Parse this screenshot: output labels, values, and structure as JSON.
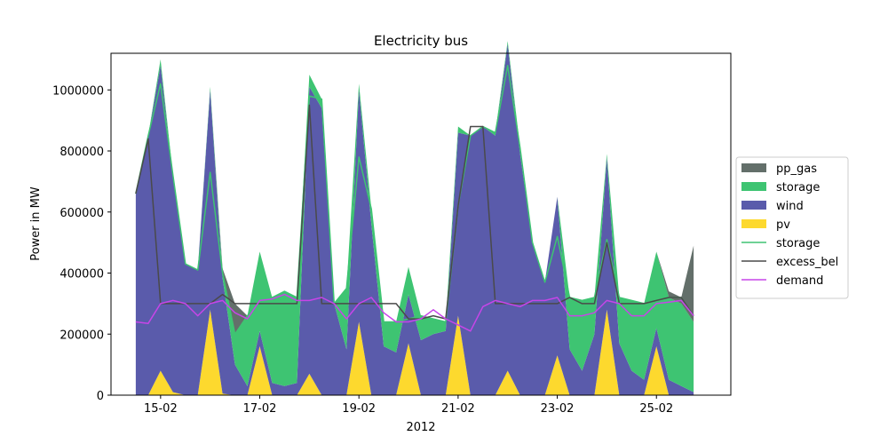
{
  "chart_data": {
    "type": "area",
    "title": "Electricity bus",
    "xlabel": "2012",
    "ylabel": "Power in MW",
    "ylim": [
      0,
      1120000
    ],
    "xlim": [
      "2012-02-14T00:00",
      "2012-02-26T12:00"
    ],
    "x_ticks": [
      {
        "date": "2012-02-15T00:00",
        "label": "15-02"
      },
      {
        "date": "2012-02-17T00:00",
        "label": "17-02"
      },
      {
        "date": "2012-02-19T00:00",
        "label": "19-02"
      },
      {
        "date": "2012-02-21T00:00",
        "label": "21-02"
      },
      {
        "date": "2012-02-23T00:00",
        "label": "23-02"
      },
      {
        "date": "2012-02-25T00:00",
        "label": "25-02"
      }
    ],
    "y_ticks": [
      {
        "value": 0,
        "label": "0"
      },
      {
        "value": 200000,
        "label": "200000"
      },
      {
        "value": 400000,
        "label": "400000"
      },
      {
        "value": 600000,
        "label": "600000"
      },
      {
        "value": 800000,
        "label": "800000"
      },
      {
        "value": 1000000,
        "label": "1000000"
      }
    ],
    "grid": false,
    "legend_position": "right, outside the plot",
    "x": [
      "2012-02-14T12:00",
      "2012-02-14T18:00",
      "2012-02-15T00:00",
      "2012-02-15T06:00",
      "2012-02-15T12:00",
      "2012-02-15T18:00",
      "2012-02-16T00:00",
      "2012-02-16T06:00",
      "2012-02-16T12:00",
      "2012-02-16T18:00",
      "2012-02-17T00:00",
      "2012-02-17T06:00",
      "2012-02-17T12:00",
      "2012-02-17T18:00",
      "2012-02-18T00:00",
      "2012-02-18T06:00",
      "2012-02-18T12:00",
      "2012-02-18T18:00",
      "2012-02-19T00:00",
      "2012-02-19T06:00",
      "2012-02-19T12:00",
      "2012-02-19T18:00",
      "2012-02-20T00:00",
      "2012-02-20T06:00",
      "2012-02-20T12:00",
      "2012-02-20T18:00",
      "2012-02-21T00:00",
      "2012-02-21T06:00",
      "2012-02-21T12:00",
      "2012-02-21T18:00",
      "2012-02-22T00:00",
      "2012-02-22T06:00",
      "2012-02-22T12:00",
      "2012-02-22T18:00",
      "2012-02-23T00:00",
      "2012-02-23T06:00",
      "2012-02-23T12:00",
      "2012-02-23T18:00",
      "2012-02-24T00:00",
      "2012-02-24T06:00",
      "2012-02-24T12:00",
      "2012-02-24T18:00",
      "2012-02-25T00:00",
      "2012-02-25T06:00",
      "2012-02-25T12:00",
      "2012-02-25T18:00"
    ],
    "series": [
      {
        "name": "pv",
        "kind": "area",
        "color": "#fdd92e",
        "values": [
          0,
          0,
          80000,
          10000,
          0,
          0,
          280000,
          5000,
          0,
          0,
          160000,
          0,
          0,
          0,
          70000,
          0,
          0,
          0,
          240000,
          0,
          0,
          0,
          170000,
          0,
          0,
          0,
          260000,
          0,
          0,
          0,
          80000,
          0,
          0,
          0,
          130000,
          0,
          0,
          0,
          280000,
          0,
          0,
          0,
          160000,
          0,
          0,
          0
        ]
      },
      {
        "name": "wind",
        "kind": "area",
        "color": "#5a5bab",
        "values": [
          660000,
          850000,
          1000000,
          700000,
          430000,
          410000,
          720000,
          380000,
          100000,
          30000,
          50000,
          40000,
          30000,
          40000,
          940000,
          940000,
          300000,
          150000,
          760000,
          560000,
          160000,
          140000,
          160000,
          180000,
          200000,
          210000,
          600000,
          850000,
          880000,
          850000,
          1070000,
          790000,
          500000,
          370000,
          520000,
          150000,
          80000,
          200000,
          500000,
          170000,
          80000,
          50000,
          60000,
          50000,
          30000,
          10000
        ]
      },
      {
        "name": "storage",
        "kind": "area",
        "color": "#3ec472",
        "values": [
          0,
          0,
          20000,
          10000,
          0,
          0,
          10000,
          20000,
          100000,
          230000,
          260000,
          280000,
          310000,
          280000,
          40000,
          30000,
          0,
          200000,
          20000,
          50000,
          80000,
          100000,
          90000,
          80000,
          50000,
          30000,
          20000,
          0,
          0,
          10000,
          10000,
          20000,
          0,
          0,
          0,
          170000,
          230000,
          120000,
          10000,
          150000,
          230000,
          250000,
          250000,
          270000,
          270000,
          230000
        ]
      },
      {
        "name": "pp_gas",
        "kind": "area",
        "color": "#636f6a",
        "values": [
          0,
          0,
          0,
          0,
          0,
          0,
          0,
          10000,
          100000,
          0,
          0,
          0,
          0,
          0,
          0,
          0,
          0,
          0,
          0,
          0,
          0,
          0,
          0,
          0,
          0,
          0,
          0,
          0,
          0,
          0,
          0,
          0,
          0,
          0,
          0,
          0,
          0,
          0,
          0,
          0,
          0,
          0,
          0,
          20000,
          20000,
          250000
        ]
      },
      {
        "name": "storage",
        "kind": "line",
        "color": "#3ec472",
        "values": [
          660000,
          850000,
          1020000,
          720000,
          430000,
          410000,
          730000,
          400000,
          200000,
          260000,
          310000,
          320000,
          340000,
          320000,
          980000,
          970000,
          300000,
          350000,
          780000,
          610000,
          240000,
          240000,
          250000,
          260000,
          250000,
          240000,
          620000,
          850000,
          880000,
          860000,
          1080000,
          810000,
          500000,
          370000,
          520000,
          320000,
          310000,
          320000,
          510000,
          320000,
          310000,
          300000,
          310000,
          320000,
          320000,
          260000
        ]
      },
      {
        "name": "excess_bel",
        "kind": "line",
        "color": "#4a4a4a",
        "values": [
          660000,
          840000,
          300000,
          300000,
          300000,
          300000,
          300000,
          330000,
          300000,
          300000,
          300000,
          300000,
          300000,
          300000,
          950000,
          300000,
          300000,
          300000,
          300000,
          300000,
          300000,
          300000,
          250000,
          250000,
          260000,
          250000,
          620000,
          880000,
          880000,
          300000,
          300000,
          300000,
          300000,
          300000,
          300000,
          320000,
          300000,
          300000,
          500000,
          300000,
          300000,
          300000,
          310000,
          320000,
          320000,
          260000
        ]
      },
      {
        "name": "demand",
        "kind": "line",
        "color": "#c745e8",
        "values": [
          240000,
          235000,
          300000,
          310000,
          300000,
          260000,
          300000,
          310000,
          270000,
          250000,
          310000,
          315000,
          330000,
          310000,
          310000,
          320000,
          300000,
          250000,
          300000,
          320000,
          270000,
          240000,
          240000,
          250000,
          280000,
          250000,
          230000,
          210000,
          290000,
          310000,
          300000,
          290000,
          310000,
          310000,
          320000,
          260000,
          260000,
          270000,
          310000,
          300000,
          260000,
          260000,
          300000,
          305000,
          310000,
          260000
        ]
      }
    ]
  }
}
